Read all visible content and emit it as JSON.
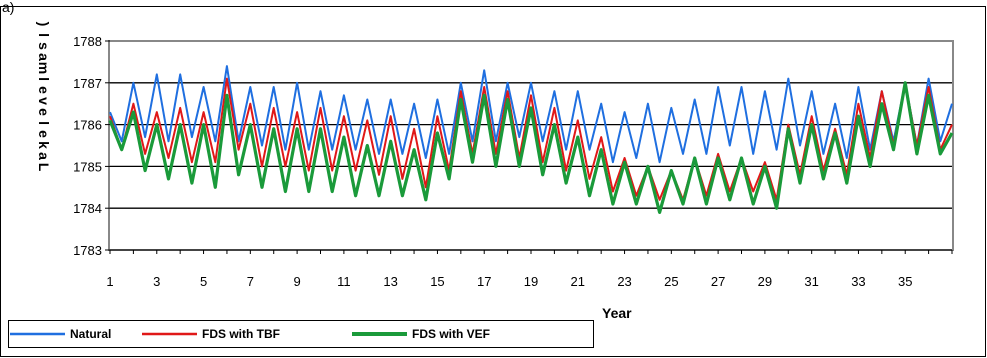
{
  "panel_label": "a)",
  "chart_data": {
    "type": "line",
    "title": "",
    "xlabel": "Year",
    "ylabel": "Lake level (masl)",
    "ylabel_as_printed": ")lsamlevelekaL",
    "xlim": [
      1,
      37
    ],
    "ylim": [
      1783,
      1788
    ],
    "x_ticks": [
      1,
      3,
      5,
      7,
      9,
      11,
      13,
      15,
      17,
      19,
      21,
      23,
      25,
      27,
      29,
      31,
      33,
      35
    ],
    "y_ticks": [
      1783,
      1784,
      1785,
      1786,
      1787,
      1788
    ],
    "grid": "horizontal",
    "legend_position": "bottom-left",
    "x": [
      1.0,
      1.5,
      2.0,
      2.5,
      3.0,
      3.5,
      4.0,
      4.5,
      5.0,
      5.5,
      6.0,
      6.5,
      7.0,
      7.5,
      8.0,
      8.5,
      9.0,
      9.5,
      10.0,
      10.5,
      11.0,
      11.5,
      12.0,
      12.5,
      13.0,
      13.5,
      14.0,
      14.5,
      15.0,
      15.5,
      16.0,
      16.5,
      17.0,
      17.5,
      18.0,
      18.5,
      19.0,
      19.5,
      20.0,
      20.5,
      21.0,
      21.5,
      22.0,
      22.5,
      23.0,
      23.5,
      24.0,
      24.5,
      25.0,
      25.5,
      26.0,
      26.5,
      27.0,
      27.5,
      28.0,
      28.5,
      29.0,
      29.5,
      30.0,
      30.5,
      31.0,
      31.5,
      32.0,
      32.5,
      33.0,
      33.5,
      34.0,
      34.5,
      35.0,
      35.5,
      36.0,
      36.5,
      37.0
    ],
    "series": [
      {
        "name": "Natural",
        "color": "#1f6fe0",
        "values": [
          1786.3,
          1785.6,
          1787.0,
          1785.7,
          1787.2,
          1785.6,
          1787.2,
          1785.7,
          1786.9,
          1785.6,
          1787.4,
          1785.6,
          1786.9,
          1785.5,
          1786.9,
          1785.4,
          1787.0,
          1785.4,
          1786.8,
          1785.4,
          1786.7,
          1785.4,
          1786.6,
          1785.3,
          1786.6,
          1785.3,
          1786.5,
          1785.2,
          1786.6,
          1785.3,
          1787.0,
          1785.6,
          1787.3,
          1785.6,
          1787.0,
          1785.7,
          1787.0,
          1785.6,
          1786.8,
          1785.4,
          1786.8,
          1785.4,
          1786.5,
          1785.1,
          1786.3,
          1785.2,
          1786.5,
          1785.1,
          1786.4,
          1785.3,
          1786.6,
          1785.3,
          1786.9,
          1785.5,
          1786.9,
          1785.3,
          1786.8,
          1785.4,
          1787.1,
          1785.5,
          1786.8,
          1785.3,
          1786.5,
          1785.2,
          1786.9,
          1785.4,
          1786.8,
          1785.6,
          1787.0,
          1785.5,
          1787.1,
          1785.6,
          1786.5
        ]
      },
      {
        "name": "FDS with TBF",
        "color": "#e01818",
        "values": [
          1786.2,
          1785.4,
          1786.5,
          1785.3,
          1786.3,
          1785.2,
          1786.4,
          1785.1,
          1786.3,
          1785.1,
          1787.1,
          1785.4,
          1786.5,
          1785.0,
          1786.4,
          1785.0,
          1786.3,
          1784.9,
          1786.4,
          1784.9,
          1786.2,
          1784.9,
          1786.1,
          1784.8,
          1786.2,
          1784.7,
          1785.9,
          1784.5,
          1786.2,
          1784.9,
          1786.8,
          1785.3,
          1786.9,
          1785.3,
          1786.8,
          1785.2,
          1786.7,
          1785.1,
          1786.4,
          1784.9,
          1786.1,
          1784.7,
          1785.7,
          1784.4,
          1785.2,
          1784.3,
          1785.0,
          1784.2,
          1784.9,
          1784.2,
          1785.2,
          1784.3,
          1785.3,
          1784.4,
          1785.2,
          1784.4,
          1785.1,
          1784.2,
          1786.0,
          1784.8,
          1786.2,
          1784.9,
          1785.9,
          1784.8,
          1786.5,
          1785.2,
          1786.8,
          1785.5,
          1787.0,
          1785.5,
          1786.9,
          1785.4,
          1786.0
        ]
      },
      {
        "name": "FDS with VEF",
        "color": "#1a9a3a",
        "values": [
          1786.1,
          1785.4,
          1786.3,
          1784.9,
          1786.0,
          1784.7,
          1786.0,
          1784.6,
          1786.0,
          1784.5,
          1786.7,
          1784.8,
          1786.0,
          1784.5,
          1785.9,
          1784.4,
          1785.9,
          1784.4,
          1785.9,
          1784.4,
          1785.7,
          1784.3,
          1785.5,
          1784.3,
          1785.6,
          1784.3,
          1785.4,
          1784.2,
          1785.8,
          1784.7,
          1786.6,
          1785.1,
          1786.7,
          1785.0,
          1786.6,
          1785.0,
          1786.4,
          1784.8,
          1786.0,
          1784.6,
          1785.7,
          1784.3,
          1785.4,
          1784.1,
          1785.1,
          1784.1,
          1785.0,
          1783.9,
          1784.9,
          1784.1,
          1785.2,
          1784.1,
          1785.2,
          1784.2,
          1785.2,
          1784.1,
          1785.0,
          1784.0,
          1785.9,
          1784.6,
          1786.0,
          1784.7,
          1785.8,
          1784.6,
          1786.2,
          1785.0,
          1786.5,
          1785.4,
          1787.0,
          1785.3,
          1786.7,
          1785.3,
          1785.8
        ]
      }
    ]
  }
}
